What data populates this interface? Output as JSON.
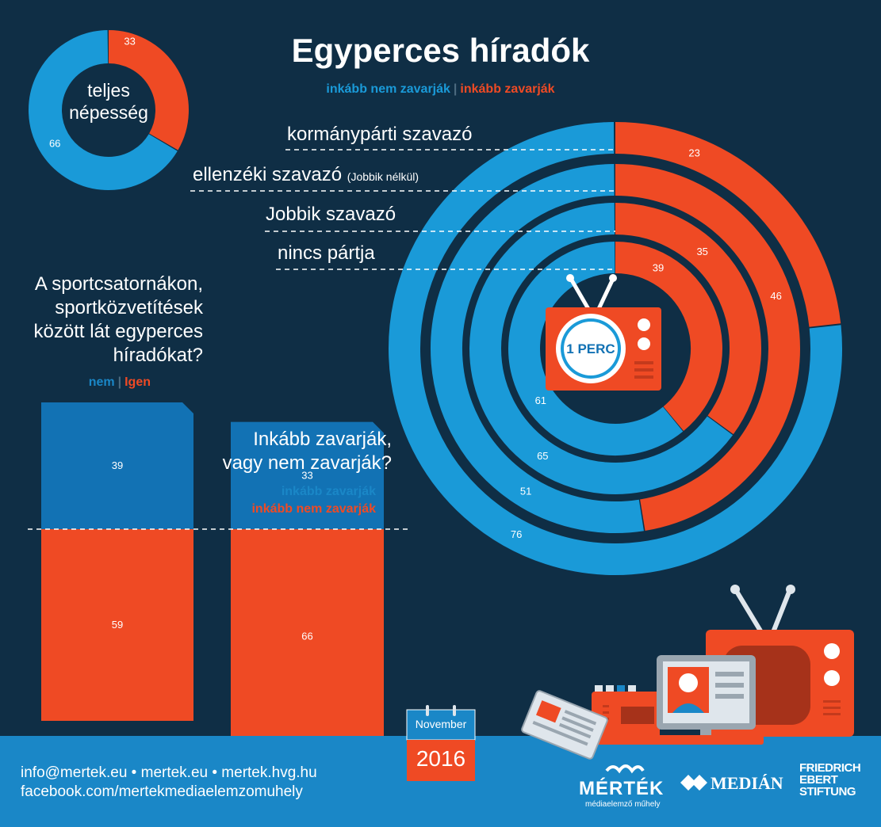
{
  "title": "Egyperces híradók",
  "legend": {
    "not_bothered": "inkább nem zavarják",
    "bothered": "inkább zavarják",
    "separator": "|"
  },
  "population": {
    "label_line1": "teljes",
    "label_line2": "népesség"
  },
  "ring_labels": [
    {
      "text": "kormánypárti szavazó",
      "note": ""
    },
    {
      "text": "ellenzéki szavazó",
      "note": "(Jobbik nélkül)"
    },
    {
      "text": "Jobbik szavazó",
      "note": ""
    },
    {
      "text": "nincs pártja",
      "note": ""
    }
  ],
  "tv_badge": "1 PERC",
  "sports_question": {
    "line1": "A sportcsatornákon,",
    "line2": "sportközvetítések",
    "line3": "között lát egyperces",
    "line4": "híradókat?",
    "legend_no": "nem",
    "legend_yes": "Igen"
  },
  "bother_question": {
    "line1": "Inkább zavarják,",
    "line2": "vagy nem zavarják?",
    "legend_bothered": "inkább zavarják",
    "legend_not_bothered": "inkább nem zavarják"
  },
  "calendar": {
    "month": "November",
    "year": "2016"
  },
  "footer": {
    "contact_line1": "info@mertek.eu  •  mertek.eu  •  mertek.hvg.hu",
    "contact_line2": "facebook.com/mertekmediaelemzomuhely",
    "logo1": "MÉRTÉK",
    "logo1_sub": "médiaelemző műhely",
    "logo2": "MEDIÁN",
    "logo3_line1": "FRIEDRICH",
    "logo3_line2": "EBERT",
    "logo3_line3": "STIFTUNG"
  },
  "colors": {
    "background": "#0f2e45",
    "blue": "#1a9ad8",
    "dark_blue": "#1272b4",
    "red": "#ef4a24",
    "footer": "#1a87c7"
  },
  "chart_data": [
    {
      "type": "pie",
      "title": "",
      "categories": [
        "inkább zavarják",
        "inkább nem zavarják"
      ],
      "values": [
        33,
        66
      ]
    },
    {
      "type": "pie",
      "title": "Egyperces híradók",
      "categories": [
        "kormánypárti szavazó",
        "ellenzéki szavazó (Jobbik nélkül)",
        "Jobbik szavazó",
        "nincs pártja"
      ],
      "series": [
        {
          "name": "inkább zavarják",
          "values": [
            23,
            46,
            35,
            39
          ]
        },
        {
          "name": "inkább nem zavarják",
          "values": [
            76,
            51,
            65,
            61
          ]
        }
      ]
    },
    {
      "type": "bar",
      "title": "",
      "categories": [
        "A sportcsatornákon, sportközvetítések között lát egyperces híradókat?",
        "Inkább zavarják, vagy nem zavarják?"
      ],
      "series": [
        {
          "name": "nem / inkább zavarják",
          "values": [
            39,
            33
          ]
        },
        {
          "name": "Igen / inkább nem zavarják",
          "values": [
            59,
            66
          ]
        }
      ]
    }
  ]
}
